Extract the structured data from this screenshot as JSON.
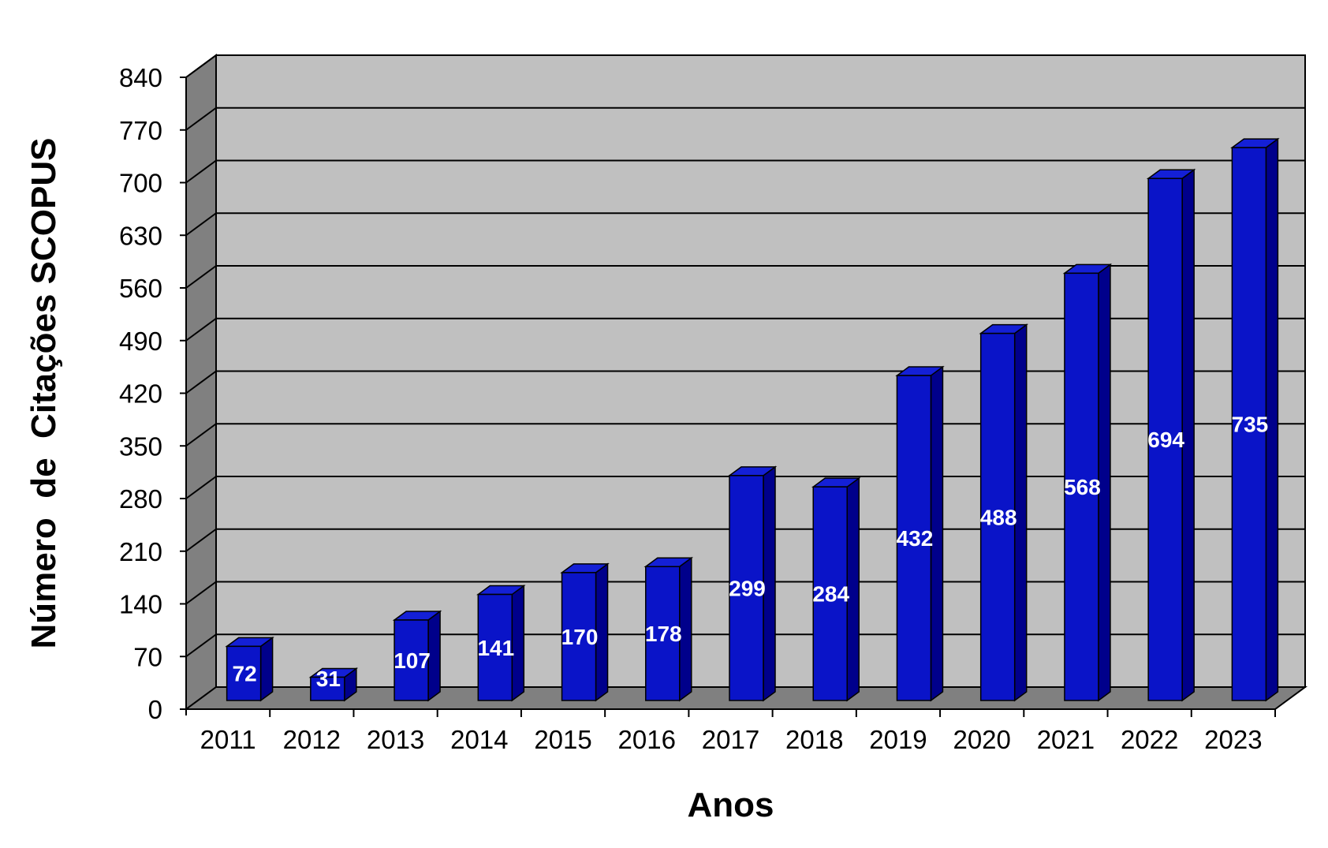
{
  "chart_data": {
    "type": "bar",
    "categories": [
      "2011",
      "2012",
      "2013",
      "2014",
      "2015",
      "2016",
      "2017",
      "2018",
      "2019",
      "2020",
      "2021",
      "2022",
      "2023"
    ],
    "values": [
      72,
      31,
      107,
      141,
      170,
      178,
      299,
      284,
      432,
      488,
      568,
      694,
      735
    ],
    "data_labels": [
      "72",
      "31",
      "107",
      "141",
      "170",
      "178",
      "299",
      "284",
      "432",
      "488",
      "568",
      "694",
      "735"
    ],
    "title": "",
    "xlabel": "Anos",
    "ylabel": "Número  de  Citações SCOPUS",
    "ylim": [
      0,
      840
    ],
    "yticks": [
      0,
      70,
      140,
      210,
      280,
      350,
      420,
      490,
      560,
      630,
      700,
      770,
      840
    ],
    "ytick_labels": [
      "0",
      "70",
      "140",
      "210",
      "280",
      "350",
      "420",
      "490",
      "560",
      "630",
      "700",
      "770",
      "840"
    ],
    "grid": true,
    "legend": "none",
    "style": "3d-column",
    "colors": {
      "bar_front": "#0a14c8",
      "bar_side": "#00008b",
      "bar_top": "#1420d6",
      "wall_back": "#c0c0c0",
      "wall_left": "#808080",
      "floor": "#808080",
      "gridline": "#000000",
      "data_label": "#ffffff"
    }
  }
}
